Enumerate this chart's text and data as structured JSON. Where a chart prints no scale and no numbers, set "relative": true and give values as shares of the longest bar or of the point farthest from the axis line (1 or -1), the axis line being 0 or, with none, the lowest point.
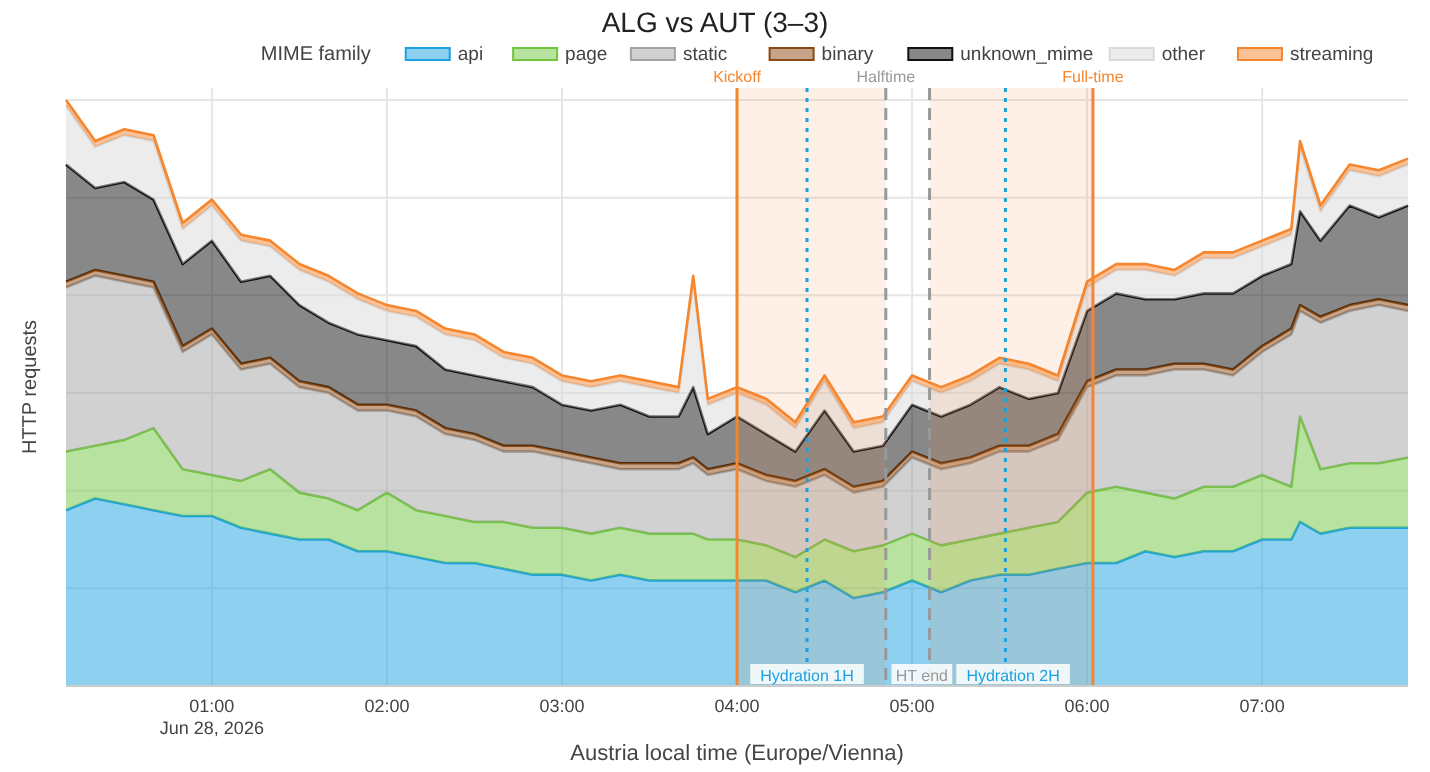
{
  "chart_data": {
    "type": "area",
    "title": "ALG vs AUT (3–3)",
    "xlabel": "Austria local time (Europe/Vienna)",
    "ylabel": "HTTP requests",
    "legend_title": "MIME family",
    "legend": "top",
    "grid": true,
    "stacked": true,
    "relative": true,
    "x": [
      "2026-06-28T00:10",
      "2026-06-28T00:20",
      "2026-06-28T00:30",
      "2026-06-28T00:40",
      "2026-06-28T00:50",
      "2026-06-28T01:00",
      "2026-06-28T01:10",
      "2026-06-28T01:20",
      "2026-06-28T01:30",
      "2026-06-28T01:40",
      "2026-06-28T01:50",
      "2026-06-28T02:00",
      "2026-06-28T02:10",
      "2026-06-28T02:20",
      "2026-06-28T02:30",
      "2026-06-28T02:40",
      "2026-06-28T02:50",
      "2026-06-28T03:00",
      "2026-06-28T03:10",
      "2026-06-28T03:20",
      "2026-06-28T03:30",
      "2026-06-28T03:40",
      "2026-06-28T03:45",
      "2026-06-28T03:50",
      "2026-06-28T04:00",
      "2026-06-28T04:10",
      "2026-06-28T04:20",
      "2026-06-28T04:30",
      "2026-06-28T04:40",
      "2026-06-28T04:50",
      "2026-06-28T05:00",
      "2026-06-28T05:10",
      "2026-06-28T05:20",
      "2026-06-28T05:30",
      "2026-06-28T05:40",
      "2026-06-28T05:50",
      "2026-06-28T06:00",
      "2026-06-28T06:10",
      "2026-06-28T06:20",
      "2026-06-28T06:30",
      "2026-06-28T06:40",
      "2026-06-28T06:50",
      "2026-06-28T07:00",
      "2026-06-28T07:10",
      "2026-06-28T07:13",
      "2026-06-28T07:20",
      "2026-06-28T07:30",
      "2026-06-28T07:40",
      "2026-06-28T07:50"
    ],
    "xlim": [
      "2026-06-28T00:10",
      "2026-06-28T07:50"
    ],
    "xticks": [
      {
        "value": "2026-06-28T01:00",
        "label": "01:00\nJun 28, 2026"
      },
      {
        "value": "2026-06-28T02:00",
        "label": "02:00"
      },
      {
        "value": "2026-06-28T03:00",
        "label": "03:00"
      },
      {
        "value": "2026-06-28T04:00",
        "label": "04:00"
      },
      {
        "value": "2026-06-28T05:00",
        "label": "05:00"
      },
      {
        "value": "2026-06-28T06:00",
        "label": "06:00"
      },
      {
        "value": "2026-06-28T07:00",
        "label": "07:00"
      }
    ],
    "series": [
      {
        "name": "api",
        "color": "#1ba1e2",
        "values": [
          0.3,
          0.32,
          0.31,
          0.3,
          0.29,
          0.29,
          0.27,
          0.26,
          0.25,
          0.25,
          0.23,
          0.23,
          0.22,
          0.21,
          0.21,
          0.2,
          0.19,
          0.19,
          0.18,
          0.19,
          0.18,
          0.18,
          0.18,
          0.18,
          0.18,
          0.18,
          0.16,
          0.18,
          0.15,
          0.16,
          0.18,
          0.16,
          0.18,
          0.19,
          0.19,
          0.2,
          0.21,
          0.21,
          0.23,
          0.22,
          0.23,
          0.23,
          0.25,
          0.25,
          0.28,
          0.26,
          0.27,
          0.27,
          0.27
        ]
      },
      {
        "name": "page",
        "color": "#72c63f",
        "values": [
          0.1,
          0.09,
          0.11,
          0.14,
          0.08,
          0.07,
          0.08,
          0.11,
          0.08,
          0.07,
          0.07,
          0.1,
          0.08,
          0.08,
          0.07,
          0.08,
          0.08,
          0.08,
          0.08,
          0.08,
          0.08,
          0.08,
          0.08,
          0.07,
          0.07,
          0.06,
          0.06,
          0.07,
          0.08,
          0.08,
          0.08,
          0.08,
          0.07,
          0.07,
          0.08,
          0.08,
          0.12,
          0.13,
          0.1,
          0.1,
          0.11,
          0.11,
          0.11,
          0.09,
          0.18,
          0.11,
          0.11,
          0.11,
          0.12
        ]
      },
      {
        "name": "static",
        "color": "#a3a3a3",
        "values": [
          0.28,
          0.29,
          0.27,
          0.24,
          0.2,
          0.24,
          0.19,
          0.18,
          0.18,
          0.18,
          0.17,
          0.14,
          0.16,
          0.14,
          0.14,
          0.12,
          0.13,
          0.12,
          0.12,
          0.1,
          0.11,
          0.11,
          0.12,
          0.11,
          0.12,
          0.11,
          0.12,
          0.11,
          0.1,
          0.1,
          0.13,
          0.13,
          0.13,
          0.14,
          0.13,
          0.14,
          0.18,
          0.19,
          0.2,
          0.22,
          0.2,
          0.19,
          0.21,
          0.26,
          0.18,
          0.25,
          0.26,
          0.27,
          0.25
        ]
      },
      {
        "name": "binary",
        "color": "#8b4a14",
        "values": [
          0.01,
          0.01,
          0.01,
          0.01,
          0.01,
          0.01,
          0.01,
          0.01,
          0.01,
          0.01,
          0.01,
          0.01,
          0.01,
          0.01,
          0.01,
          0.01,
          0.01,
          0.01,
          0.01,
          0.01,
          0.01,
          0.01,
          0.01,
          0.01,
          0.01,
          0.01,
          0.01,
          0.01,
          0.01,
          0.01,
          0.01,
          0.01,
          0.01,
          0.01,
          0.01,
          0.01,
          0.01,
          0.01,
          0.01,
          0.01,
          0.01,
          0.01,
          0.01,
          0.01,
          0.01,
          0.01,
          0.01,
          0.01,
          0.01
        ]
      },
      {
        "name": "unknown_mime",
        "color": "#111111",
        "values": [
          0.2,
          0.14,
          0.16,
          0.14,
          0.14,
          0.15,
          0.14,
          0.14,
          0.13,
          0.11,
          0.12,
          0.11,
          0.11,
          0.1,
          0.1,
          0.11,
          0.1,
          0.08,
          0.08,
          0.1,
          0.08,
          0.08,
          0.12,
          0.06,
          0.08,
          0.07,
          0.05,
          0.1,
          0.06,
          0.06,
          0.08,
          0.08,
          0.09,
          0.1,
          0.08,
          0.07,
          0.12,
          0.13,
          0.12,
          0.11,
          0.12,
          0.13,
          0.12,
          0.11,
          0.16,
          0.13,
          0.17,
          0.14,
          0.17
        ]
      },
      {
        "name": "other",
        "color": "#d9d9d9",
        "values": [
          0.1,
          0.07,
          0.08,
          0.1,
          0.06,
          0.06,
          0.07,
          0.05,
          0.06,
          0.07,
          0.06,
          0.05,
          0.05,
          0.06,
          0.06,
          0.04,
          0.04,
          0.04,
          0.04,
          0.04,
          0.05,
          0.04,
          0.18,
          0.05,
          0.04,
          0.05,
          0.04,
          0.05,
          0.04,
          0.04,
          0.04,
          0.04,
          0.04,
          0.04,
          0.05,
          0.02,
          0.04,
          0.04,
          0.05,
          0.04,
          0.06,
          0.06,
          0.05,
          0.05,
          0.11,
          0.05,
          0.06,
          0.07,
          0.07
        ]
      },
      {
        "name": "streaming",
        "color": "#f5862e",
        "values": [
          0.01,
          0.01,
          0.01,
          0.01,
          0.01,
          0.01,
          0.01,
          0.01,
          0.01,
          0.01,
          0.01,
          0.01,
          0.01,
          0.01,
          0.01,
          0.01,
          0.01,
          0.01,
          0.01,
          0.01,
          0.01,
          0.01,
          0.01,
          0.01,
          0.01,
          0.01,
          0.01,
          0.01,
          0.01,
          0.01,
          0.01,
          0.01,
          0.01,
          0.01,
          0.01,
          0.01,
          0.01,
          0.01,
          0.01,
          0.01,
          0.01,
          0.01,
          0.01,
          0.01,
          0.01,
          0.01,
          0.01,
          0.01,
          0.01
        ]
      }
    ],
    "ref_lines": [
      {
        "axis": "x",
        "value": "2026-06-28T04:00",
        "label": "Kickoff",
        "color": "#f5862e",
        "line_style": "solid"
      },
      {
        "axis": "x",
        "value": "2026-06-28T04:24",
        "label": "Hydration 1H",
        "color": "#1ba1e2",
        "line_style": "dotted"
      },
      {
        "axis": "x",
        "value": "2026-06-28T04:51",
        "label": "Halftime",
        "color": "#999999",
        "line_style": "dashed"
      },
      {
        "axis": "x",
        "value": "2026-06-28T05:06",
        "label": "HT end",
        "color": "#999999",
        "line_style": "dashed"
      },
      {
        "axis": "x",
        "value": "2026-06-28T05:32",
        "label": "Hydration 2H",
        "color": "#1ba1e2",
        "line_style": "dotted"
      },
      {
        "axis": "x",
        "value": "2026-06-28T06:02",
        "label": "Full-time",
        "color": "#f5862e",
        "line_style": "solid"
      }
    ],
    "bands": [
      {
        "axis": "x",
        "from": "2026-06-28T04:00",
        "to": "2026-06-28T04:51",
        "color": "#f5862e"
      },
      {
        "axis": "x",
        "from": "2026-06-28T05:06",
        "to": "2026-06-28T06:02",
        "color": "#f5862e"
      }
    ]
  }
}
